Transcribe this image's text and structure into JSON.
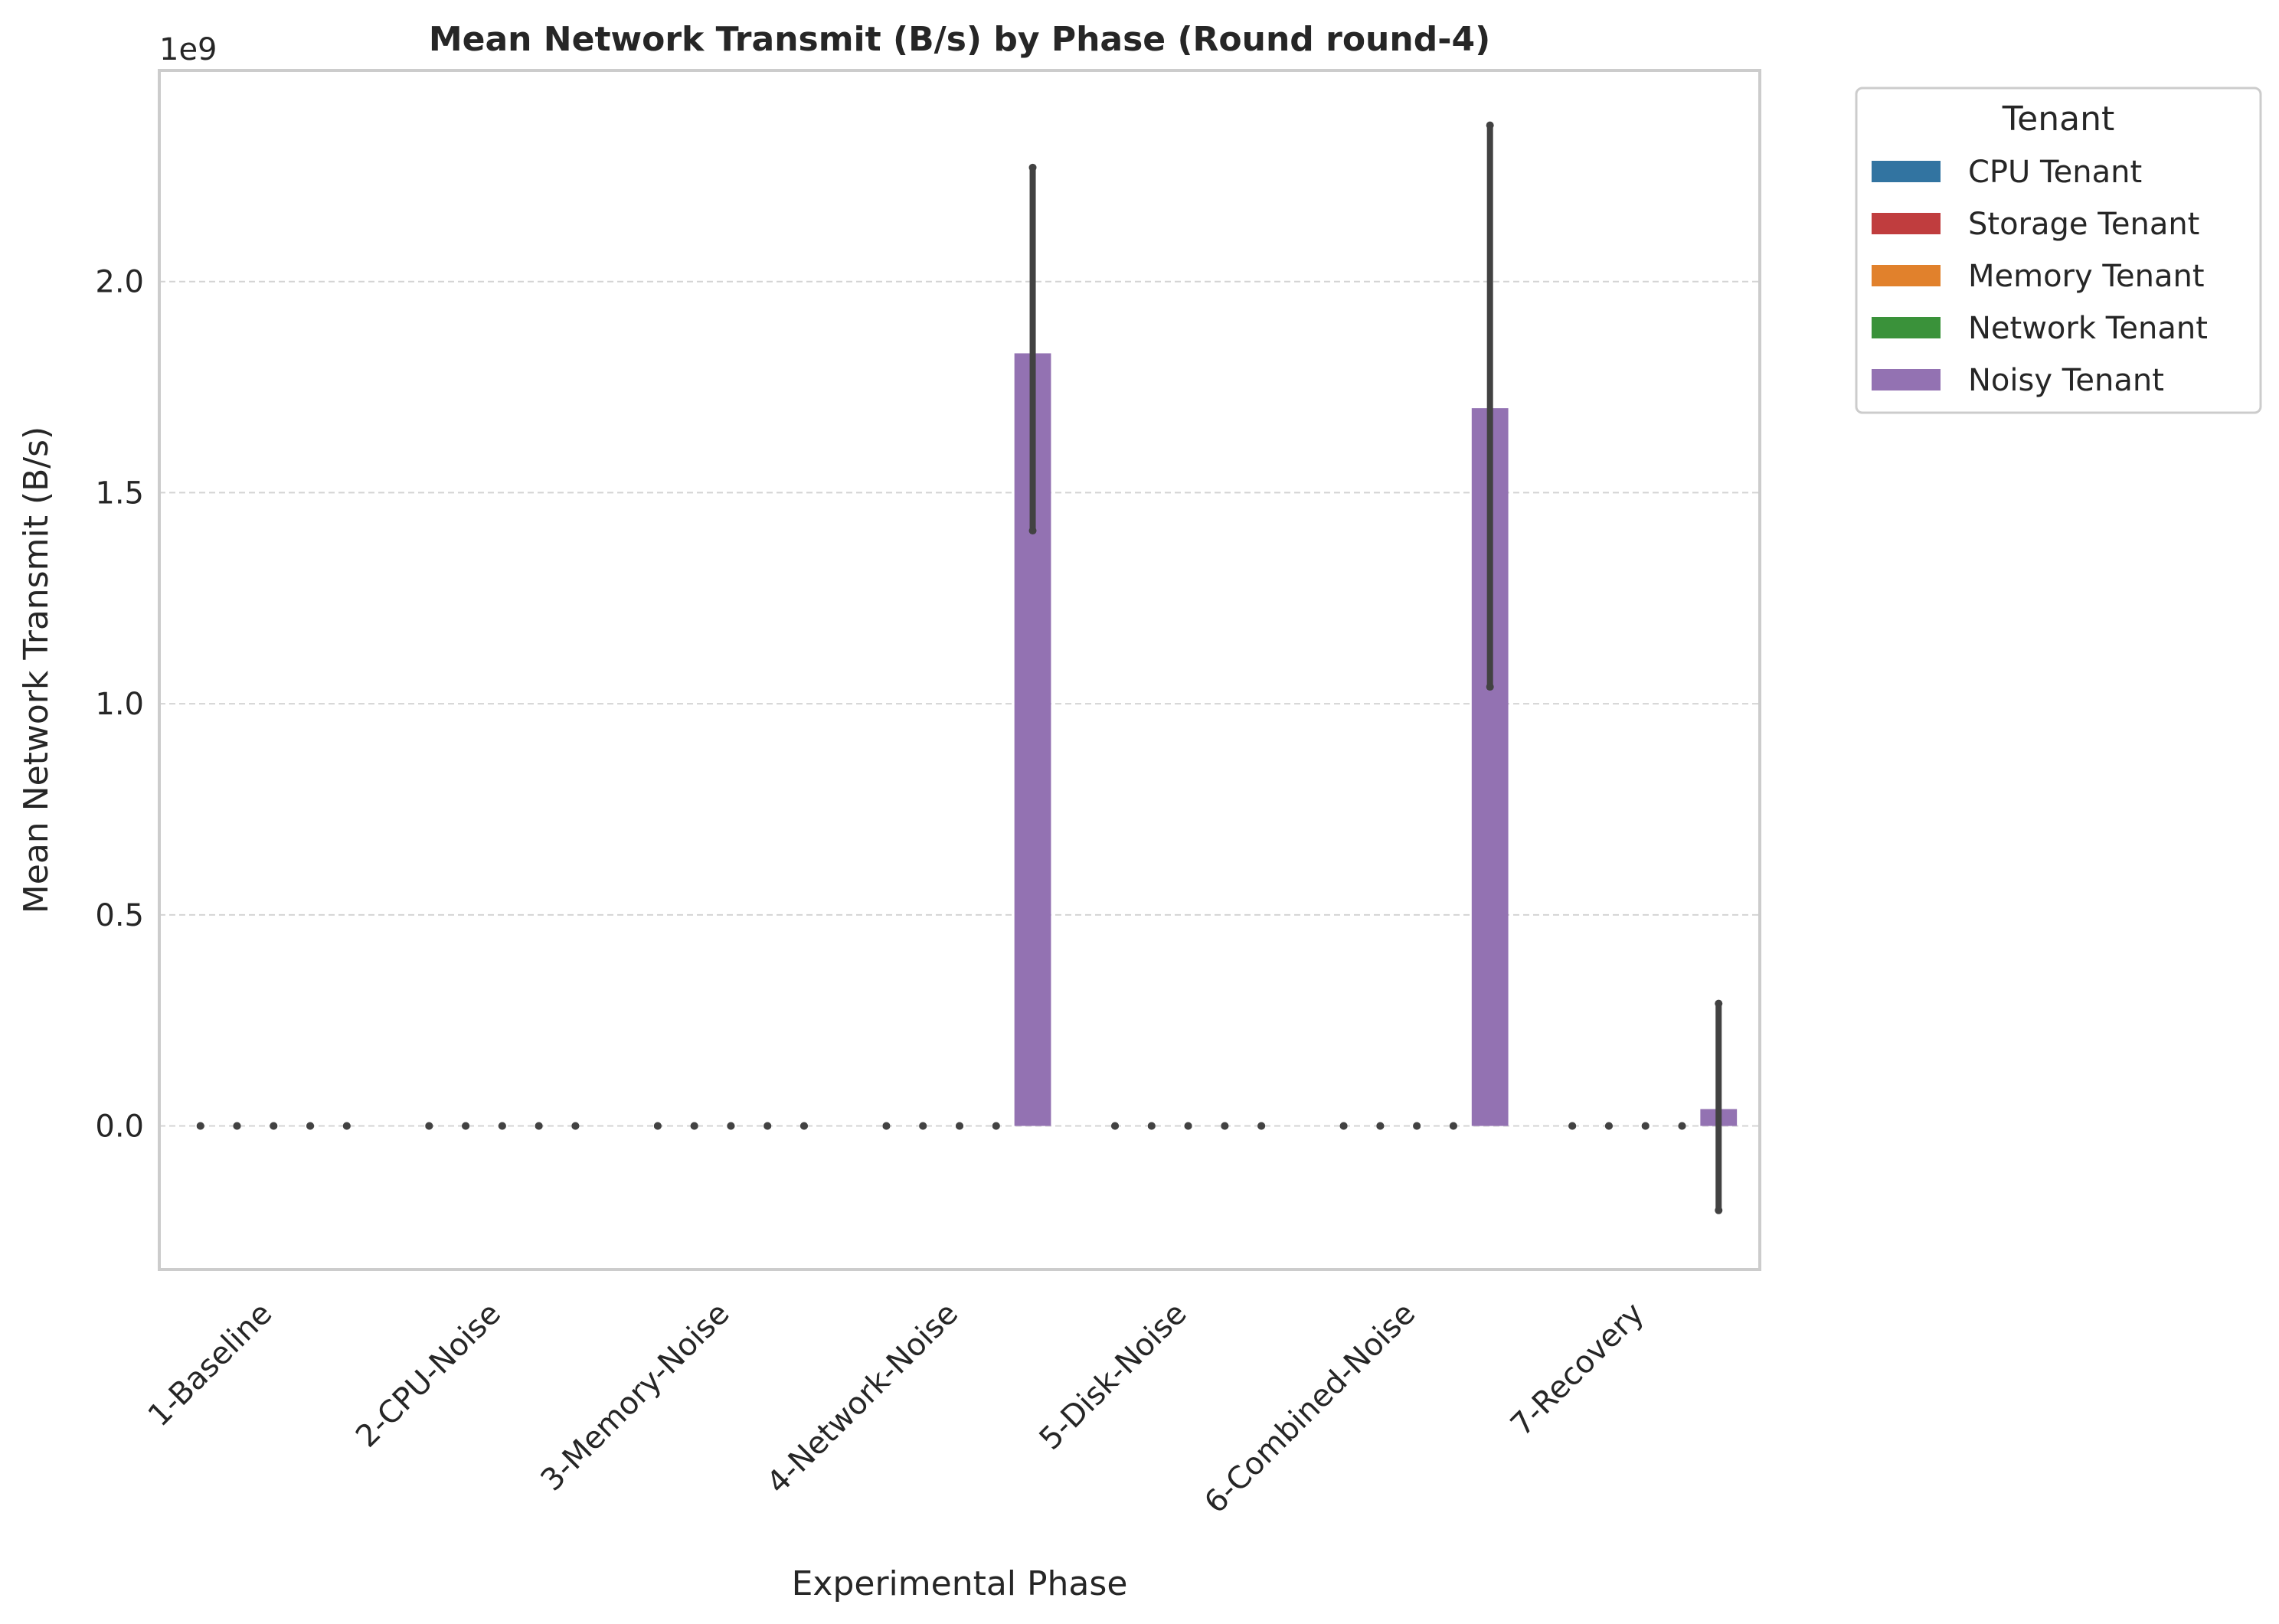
{
  "chart_data": {
    "type": "bar",
    "title": "Mean Network Transmit (B/s) by Phase (Round round-4)",
    "xlabel": "Experimental Phase",
    "ylabel": "Mean Network Transmit (B/s)",
    "offset_label": "1e9",
    "ylim": [
      -0.34,
      2.5
    ],
    "y_scale": 1000000000,
    "yticks": [
      0.0,
      0.5,
      1.0,
      1.5,
      2.0
    ],
    "ytick_labels": [
      "0.0",
      "0.5",
      "1.0",
      "1.5",
      "2.0"
    ],
    "grid": true,
    "legend_placement": "outside-upper-right",
    "legend_title": "Tenant",
    "categories": [
      "1-Baseline",
      "2-CPU-Noise",
      "3-Memory-Noise",
      "4-Network-Noise",
      "5-Disk-Noise",
      "6-Combined-Noise",
      "7-Recovery"
    ],
    "series": [
      {
        "name": "CPU Tenant",
        "color": "#3274a1",
        "values": [
          0,
          0,
          0,
          0,
          0,
          0,
          0
        ],
        "ci": [
          [
            0,
            0
          ],
          [
            0,
            0
          ],
          [
            0,
            0
          ],
          [
            0,
            0
          ],
          [
            0,
            0
          ],
          [
            0,
            0
          ],
          [
            0,
            0
          ]
        ]
      },
      {
        "name": "Storage Tenant",
        "color": "#c03d3e",
        "values": [
          0,
          0,
          0,
          0,
          0,
          0,
          0
        ],
        "ci": [
          [
            0,
            0
          ],
          [
            0,
            0
          ],
          [
            0,
            0
          ],
          [
            0,
            0
          ],
          [
            0,
            0
          ],
          [
            0,
            0
          ],
          [
            0,
            0
          ]
        ]
      },
      {
        "name": "Memory Tenant",
        "color": "#e1812c",
        "values": [
          0,
          0,
          0,
          0,
          0,
          0,
          0
        ],
        "ci": [
          [
            0,
            0
          ],
          [
            0,
            0
          ],
          [
            0,
            0
          ],
          [
            0,
            0
          ],
          [
            0,
            0
          ],
          [
            0,
            0
          ],
          [
            0,
            0
          ]
        ]
      },
      {
        "name": "Network Tenant",
        "color": "#3a923a",
        "values": [
          0,
          0,
          0,
          0,
          0,
          0,
          0
        ],
        "ci": [
          [
            0,
            0
          ],
          [
            0,
            0
          ],
          [
            0,
            0
          ],
          [
            0,
            0
          ],
          [
            0,
            0
          ],
          [
            0,
            0
          ],
          [
            0,
            0
          ]
        ]
      },
      {
        "name": "Noisy Tenant",
        "color": "#9372b2",
        "values": [
          0,
          0,
          0,
          1.83,
          0,
          1.7,
          0.04
        ],
        "ci": [
          [
            0,
            0
          ],
          [
            0,
            0
          ],
          [
            0,
            0
          ],
          [
            1.41,
            2.27
          ],
          [
            0,
            0
          ],
          [
            1.04,
            2.37
          ],
          [
            -0.2,
            0.29
          ]
        ]
      }
    ]
  }
}
